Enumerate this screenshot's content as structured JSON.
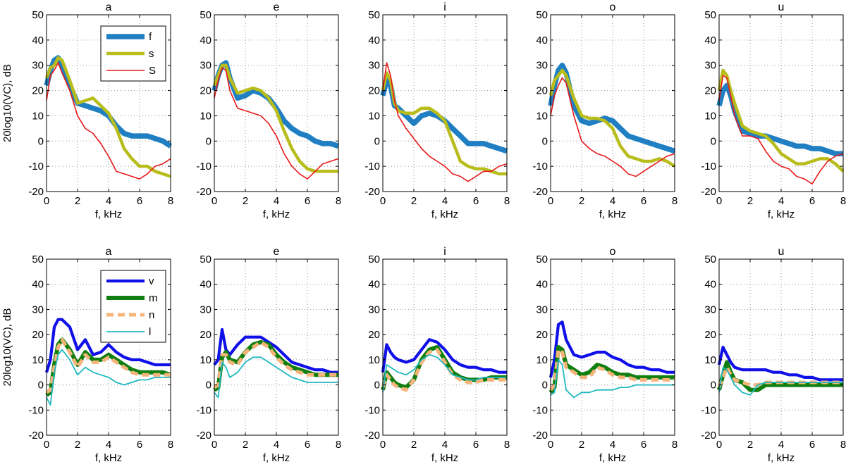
{
  "figure": {
    "ylabel": "20log10(VC), dB",
    "xlabel": "f, kHz"
  },
  "colors": {
    "f": "#1f7fc2",
    "s": "#b8bd1c",
    "S": "#e8191a",
    "v": "#1010e8",
    "m": "#0f7f0f",
    "n": "#f5b47a",
    "l": "#20b8c0"
  },
  "chart_data": [
    {
      "type": "line",
      "panel": "top",
      "vowels": [
        "a",
        "e",
        "i",
        "o",
        "u"
      ],
      "xlim": [
        0,
        8
      ],
      "ylim": [
        -20,
        50
      ],
      "xticks": [
        "0",
        "2",
        "4",
        "6",
        "8"
      ],
      "yticks": [
        "-20",
        "-10",
        "0",
        "10",
        "20",
        "30",
        "40",
        "50"
      ],
      "grid": true,
      "legend_position": "top-right of first subplot",
      "legend": [
        "f",
        "s",
        "S"
      ],
      "x": [
        0,
        0.25,
        0.5,
        0.75,
        1,
        1.5,
        2,
        2.5,
        3,
        3.5,
        4,
        4.5,
        5,
        5.5,
        6,
        6.5,
        7,
        7.5,
        8
      ],
      "subplots": [
        {
          "title": "a",
          "series": [
            {
              "name": "f",
              "values": [
                22,
                28,
                32,
                33,
                30,
                22,
                15,
                14,
                13,
                12,
                10,
                6,
                3,
                2,
                2,
                2,
                1,
                0,
                -2
              ]
            },
            {
              "name": "s",
              "values": [
                25,
                29,
                30,
                33,
                32,
                24,
                15,
                16,
                17,
                14,
                11,
                5,
                -3,
                -7,
                -10,
                -10,
                -12,
                -13,
                -14
              ]
            },
            {
              "name": "S",
              "values": [
                16,
                26,
                28,
                31,
                27,
                20,
                10,
                5,
                3,
                -1,
                -6,
                -12,
                -13,
                -14,
                -15,
                -13,
                -10,
                -9,
                -7
              ]
            }
          ]
        },
        {
          "title": "e",
          "series": [
            {
              "name": "f",
              "values": [
                20,
                26,
                30,
                31,
                25,
                17,
                18,
                20,
                19,
                17,
                13,
                8,
                5,
                3,
                2,
                0,
                -1,
                -1,
                -2
              ]
            },
            {
              "name": "s",
              "values": [
                22,
                26,
                30,
                30,
                25,
                19,
                20,
                21,
                20,
                17,
                12,
                4,
                -3,
                -8,
                -11,
                -12,
                -12,
                -12,
                -12
              ]
            },
            {
              "name": "S",
              "values": [
                17,
                24,
                29,
                28,
                20,
                13,
                12,
                11,
                10,
                7,
                2,
                -5,
                -10,
                -13,
                -15,
                -12,
                -9,
                -8,
                -7
              ]
            }
          ]
        },
        {
          "title": "i",
          "series": [
            {
              "name": "f",
              "values": [
                18,
                24,
                22,
                14,
                13,
                10,
                7,
                10,
                11,
                10,
                8,
                5,
                2,
                -1,
                -1,
                -1,
                -2,
                -3,
                -4
              ]
            },
            {
              "name": "s",
              "values": [
                20,
                27,
                24,
                15,
                12,
                11,
                11,
                13,
                13,
                11,
                8,
                0,
                -8,
                -10,
                -11,
                -11,
                -12,
                -13,
                -13
              ]
            },
            {
              "name": "S",
              "values": [
                20,
                31,
                26,
                16,
                10,
                5,
                1,
                -3,
                -6,
                -8,
                -10,
                -13,
                -14,
                -16,
                -14,
                -12,
                -12,
                -10,
                -9
              ]
            }
          ]
        },
        {
          "title": "o",
          "series": [
            {
              "name": "f",
              "values": [
                14,
                22,
                28,
                30,
                27,
                14,
                8,
                7,
                8,
                9,
                8,
                5,
                2,
                1,
                0,
                -1,
                -2,
                -3,
                -4
              ]
            },
            {
              "name": "s",
              "values": [
                18,
                24,
                26,
                28,
                26,
                17,
                10,
                9,
                9,
                8,
                5,
                -2,
                -6,
                -7,
                -8,
                -8,
                -7,
                -8,
                -10
              ]
            },
            {
              "name": "S",
              "values": [
                10,
                18,
                22,
                25,
                23,
                10,
                0,
                -3,
                -5,
                -6,
                -8,
                -10,
                -13,
                -14,
                -12,
                -10,
                -8,
                -6,
                -5
              ]
            }
          ]
        },
        {
          "title": "u",
          "series": [
            {
              "name": "f",
              "values": [
                14,
                20,
                22,
                18,
                12,
                4,
                3,
                2,
                2,
                1,
                0,
                -1,
                -2,
                -2,
                -3,
                -3,
                -4,
                -5,
                -5
              ]
            },
            {
              "name": "s",
              "values": [
                20,
                28,
                26,
                20,
                15,
                6,
                4,
                3,
                2,
                -1,
                -5,
                -7,
                -9,
                -9,
                -8,
                -7,
                -7,
                -9,
                -12
              ]
            },
            {
              "name": "S",
              "values": [
                16,
                26,
                25,
                18,
                10,
                2,
                2,
                1,
                -4,
                -8,
                -10,
                -11,
                -14,
                -15,
                -17,
                -12,
                -8,
                -6,
                -5
              ]
            }
          ]
        }
      ]
    },
    {
      "type": "line",
      "panel": "bottom",
      "vowels": [
        "a",
        "e",
        "i",
        "o",
        "u"
      ],
      "xlim": [
        0,
        8
      ],
      "ylim": [
        -20,
        50
      ],
      "xticks": [
        "0",
        "2",
        "4",
        "6",
        "8"
      ],
      "yticks": [
        "-20",
        "-10",
        "0",
        "10",
        "20",
        "30",
        "40",
        "50"
      ],
      "grid": true,
      "legend_position": "top-right of first subplot",
      "legend": [
        "v",
        "m",
        "n",
        "l"
      ],
      "x": [
        0,
        0.25,
        0.5,
        0.75,
        1,
        1.5,
        2,
        2.5,
        3,
        3.5,
        4,
        4.5,
        5,
        5.5,
        6,
        6.5,
        7,
        7.5,
        8
      ],
      "subplots": [
        {
          "title": "a",
          "series": [
            {
              "name": "v",
              "values": [
                5,
                10,
                23,
                26,
                26,
                23,
                14,
                18,
                12,
                13,
                16,
                13,
                11,
                10,
                10,
                9,
                8,
                8,
                8
              ]
            },
            {
              "name": "m",
              "values": [
                -4,
                -3,
                8,
                16,
                18,
                14,
                8,
                13,
                10,
                10,
                12,
                10,
                8,
                6,
                5,
                5,
                5,
                5,
                4
              ]
            },
            {
              "name": "n",
              "values": [
                -3,
                -2,
                7,
                15,
                18,
                13,
                7,
                12,
                9,
                9,
                11,
                9,
                7,
                5,
                4,
                4,
                4,
                4,
                4
              ]
            },
            {
              "name": "l",
              "values": [
                -5,
                -8,
                5,
                12,
                14,
                10,
                4,
                7,
                5,
                4,
                3,
                1,
                0,
                1,
                2,
                2,
                3,
                3,
                3
              ]
            }
          ]
        },
        {
          "title": "e",
          "series": [
            {
              "name": "v",
              "values": [
                8,
                10,
                22,
                14,
                12,
                16,
                19,
                19,
                19,
                17,
                15,
                12,
                9,
                8,
                7,
                6,
                6,
                5,
                5
              ]
            },
            {
              "name": "m",
              "values": [
                -2,
                -1,
                11,
                13,
                10,
                9,
                13,
                16,
                17,
                16,
                12,
                9,
                7,
                6,
                5,
                4,
                4,
                4,
                4
              ]
            },
            {
              "name": "n",
              "values": [
                -1,
                0,
                12,
                12,
                9,
                8,
                13,
                15,
                17,
                15,
                11,
                8,
                6,
                5,
                4,
                4,
                4,
                4,
                4
              ]
            },
            {
              "name": "l",
              "values": [
                -3,
                -5,
                9,
                7,
                3,
                5,
                9,
                11,
                11,
                9,
                7,
                5,
                3,
                2,
                1,
                1,
                1,
                1,
                1
              ]
            }
          ]
        },
        {
          "title": "i",
          "series": [
            {
              "name": "v",
              "values": [
                5,
                16,
                13,
                11,
                10,
                9,
                10,
                14,
                18,
                17,
                14,
                10,
                8,
                7,
                7,
                6,
                6,
                5,
                5
              ]
            },
            {
              "name": "m",
              "values": [
                -2,
                5,
                3,
                1,
                0,
                -1,
                2,
                10,
                14,
                15,
                10,
                5,
                3,
                2,
                2,
                2,
                3,
                3,
                3
              ]
            },
            {
              "name": "n",
              "values": [
                -1,
                4,
                2,
                0,
                -1,
                -2,
                2,
                9,
                13,
                14,
                9,
                4,
                2,
                1,
                1,
                2,
                2,
                2,
                2
              ]
            },
            {
              "name": "l",
              "values": [
                -3,
                8,
                7,
                6,
                5,
                4,
                6,
                10,
                12,
                11,
                8,
                4,
                3,
                2,
                2,
                3,
                3,
                3,
                3
              ]
            }
          ]
        },
        {
          "title": "o",
          "series": [
            {
              "name": "v",
              "values": [
                3,
                10,
                24,
                25,
                18,
                12,
                11,
                12,
                13,
                13,
                11,
                10,
                8,
                7,
                7,
                6,
                6,
                5,
                5
              ]
            },
            {
              "name": "m",
              "values": [
                -3,
                -1,
                15,
                14,
                8,
                6,
                4,
                5,
                8,
                7,
                5,
                4,
                4,
                3,
                3,
                3,
                3,
                3,
                3
              ]
            },
            {
              "name": "n",
              "values": [
                -2,
                0,
                14,
                13,
                7,
                5,
                3,
                3,
                7,
                6,
                4,
                3,
                3,
                2,
                2,
                2,
                2,
                2,
                2
              ]
            },
            {
              "name": "l",
              "values": [
                -4,
                -3,
                10,
                8,
                -2,
                -5,
                -3,
                -3,
                -2,
                -2,
                -2,
                -1,
                -1,
                0,
                0,
                0,
                0,
                0,
                0
              ]
            }
          ]
        },
        {
          "title": "u",
          "series": [
            {
              "name": "v",
              "values": [
                8,
                15,
                12,
                9,
                7,
                6,
                6,
                6,
                6,
                5,
                5,
                4,
                4,
                3,
                3,
                2,
                2,
                2,
                2
              ]
            },
            {
              "name": "m",
              "values": [
                -2,
                4,
                9,
                5,
                2,
                1,
                -2,
                -2,
                0,
                0,
                0,
                0,
                0,
                0,
                0,
                0,
                0,
                0,
                0
              ]
            },
            {
              "name": "n",
              "values": [
                -1,
                3,
                7,
                4,
                2,
                1,
                0,
                0,
                1,
                1,
                1,
                1,
                1,
                1,
                1,
                1,
                1,
                1,
                1
              ]
            },
            {
              "name": "l",
              "values": [
                -3,
                7,
                6,
                3,
                0,
                -3,
                -4,
                0,
                1,
                1,
                1,
                1,
                1,
                1,
                1,
                1,
                1,
                1,
                1
              ]
            }
          ]
        }
      ]
    }
  ]
}
